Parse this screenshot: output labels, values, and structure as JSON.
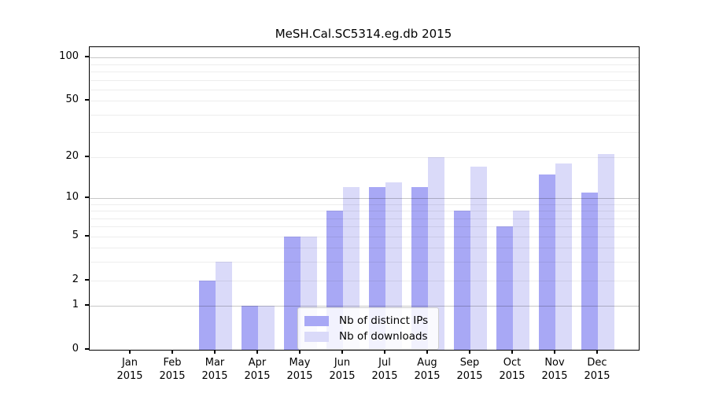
{
  "figure": {
    "title": "MeSH.Cal.SC5314.eg.db 2015"
  },
  "chart_data": {
    "type": "bar",
    "title": "MeSH.Cal.SC5314.eg.db 2015",
    "categories": [
      "Jan",
      "Feb",
      "Mar",
      "Apr",
      "May",
      "Jun",
      "Jul",
      "Aug",
      "Sep",
      "Oct",
      "Nov",
      "Dec"
    ],
    "x_tick_year": "2015",
    "series": [
      {
        "name": "Nb of distinct IPs",
        "color": "#a8a8f5",
        "values": [
          0,
          0,
          2,
          1,
          5,
          8,
          12,
          12,
          8,
          6,
          15,
          11
        ]
      },
      {
        "name": "Nb of downloads",
        "color": "#dadaf9",
        "values": [
          0,
          0,
          3,
          1,
          5,
          12,
          13,
          20,
          17,
          8,
          18,
          21
        ]
      }
    ],
    "y_scale": "log10(1+v)",
    "y_ticks_labeled": [
      0,
      1,
      2,
      5,
      10,
      20,
      50,
      100
    ],
    "y_gridlines_major": [
      1,
      10,
      100
    ],
    "y_gridlines_minor": [
      2,
      3,
      4,
      5,
      6,
      7,
      8,
      9,
      20,
      30,
      40,
      50,
      60,
      70,
      80,
      90
    ],
    "ylim": [
      0,
      122
    ],
    "grid": true,
    "legend_position": "lower-center-inside"
  }
}
